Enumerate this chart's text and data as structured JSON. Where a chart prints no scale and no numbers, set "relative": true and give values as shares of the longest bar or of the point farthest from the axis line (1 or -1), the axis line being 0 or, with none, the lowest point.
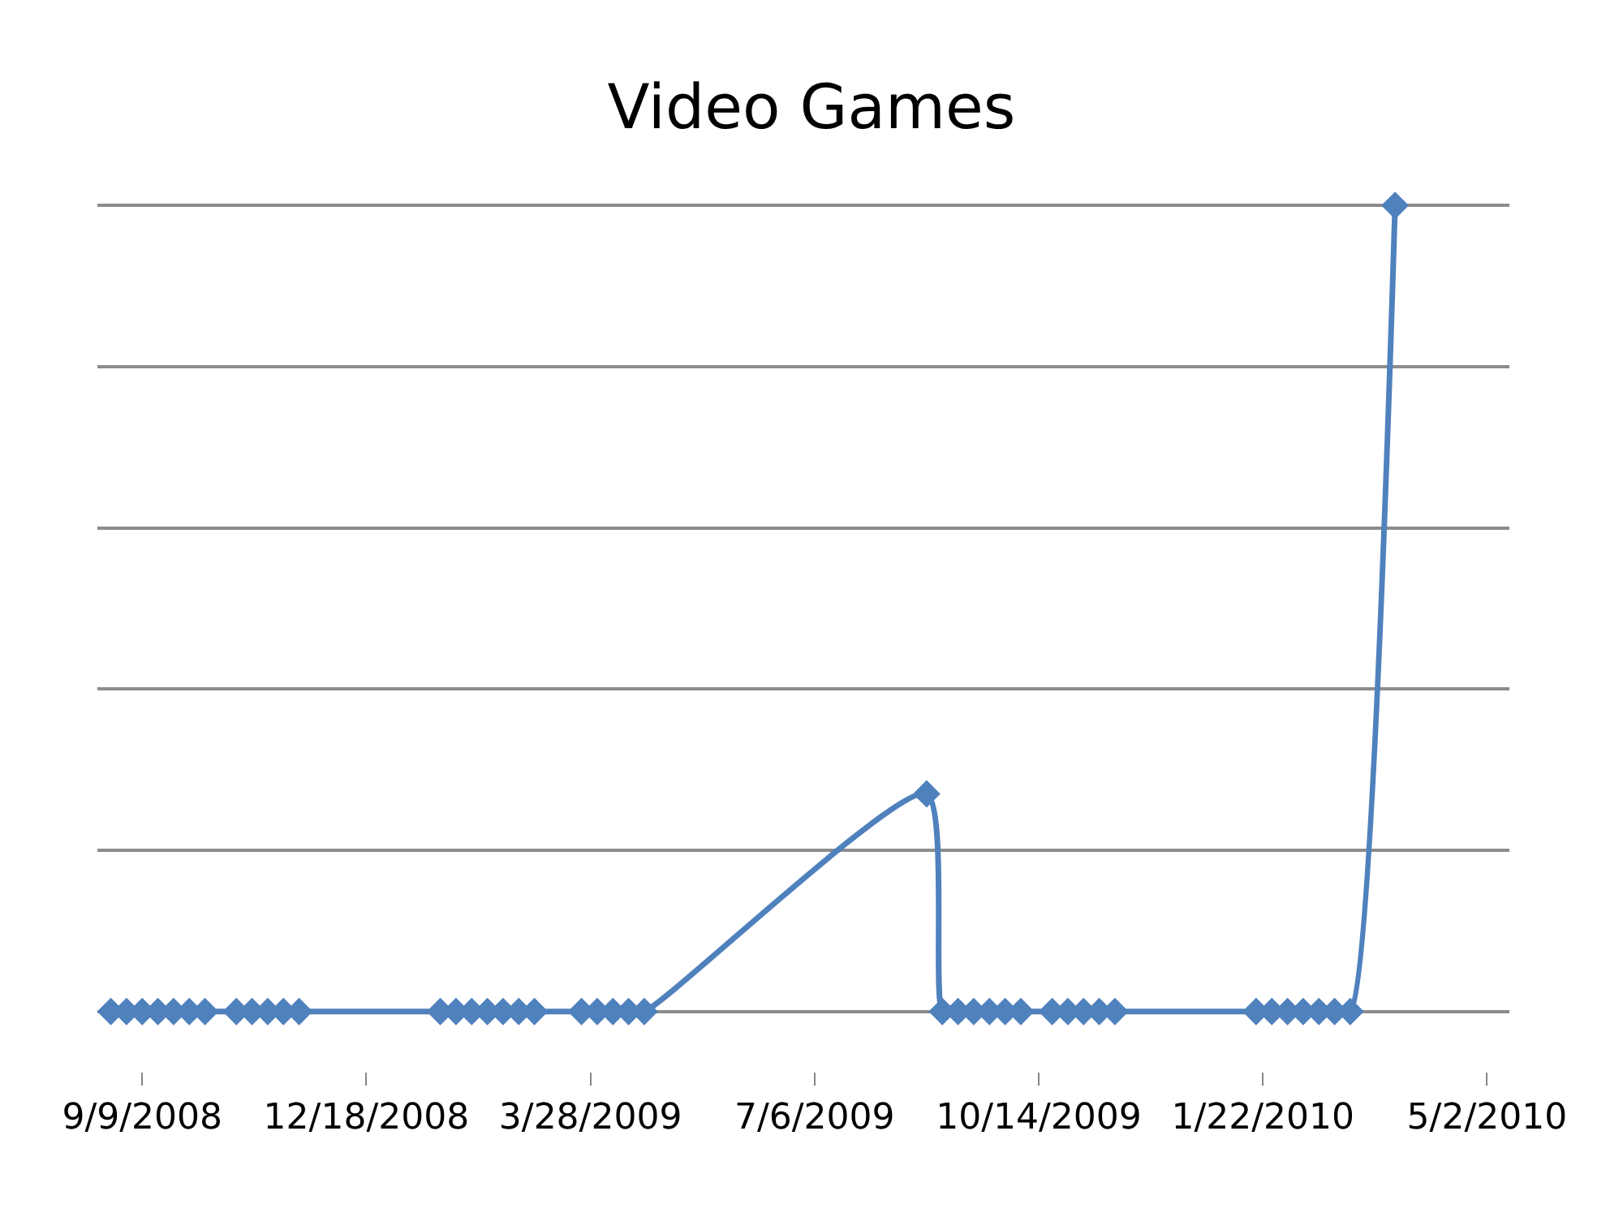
{
  "chart_data": {
    "type": "line",
    "title": "Video Games",
    "relative": true,
    "x": [
      "2008-08-26",
      "2008-09-02",
      "2008-09-09",
      "2008-09-16",
      "2008-09-23",
      "2008-09-30",
      "2008-10-07",
      "2008-10-21",
      "2008-10-28",
      "2008-11-04",
      "2008-11-11",
      "2008-11-18",
      "2009-01-20",
      "2009-01-27",
      "2009-02-03",
      "2009-02-10",
      "2009-02-17",
      "2009-02-24",
      "2009-03-03",
      "2009-03-24",
      "2009-03-31",
      "2009-04-07",
      "2009-04-14",
      "2009-04-21",
      "2009-08-25",
      "2009-09-01",
      "2009-09-08",
      "2009-09-15",
      "2009-09-22",
      "2009-09-29",
      "2009-10-06",
      "2009-10-20",
      "2009-10-27",
      "2009-11-03",
      "2009-11-10",
      "2009-11-17",
      "2010-01-19",
      "2010-01-26",
      "2010-02-02",
      "2010-02-09",
      "2010-02-16",
      "2010-02-23",
      "2010-03-02",
      "2010-03-22"
    ],
    "series": [
      {
        "color": "#4f81bd",
        "values": [
          0,
          0,
          0,
          0,
          0,
          0,
          0,
          0,
          0,
          0,
          0,
          0,
          0,
          0,
          0,
          0,
          0,
          0,
          0,
          0,
          0,
          0,
          0,
          0,
          0.27,
          0,
          0,
          0,
          0,
          0,
          0,
          0,
          0,
          0,
          0,
          0,
          0,
          0,
          0,
          0,
          0,
          0,
          0,
          1
        ]
      }
    ],
    "xlim": [
      "2008-08-20",
      "2010-05-12"
    ],
    "xticks": [
      {
        "value": "2008-09-09",
        "label": "9/9/2008"
      },
      {
        "value": "2008-12-18",
        "label": "12/18/2008"
      },
      {
        "value": "2009-03-28",
        "label": "3/28/2009"
      },
      {
        "value": "2009-07-06",
        "label": "7/6/2009"
      },
      {
        "value": "2009-10-14",
        "label": "10/14/2009"
      },
      {
        "value": "2010-01-22",
        "label": "1/22/2010"
      },
      {
        "value": "2010-05-02",
        "label": "5/2/2010"
      }
    ],
    "grid": "y",
    "legend": false,
    "marker": "diamond",
    "line_style": "solid"
  }
}
